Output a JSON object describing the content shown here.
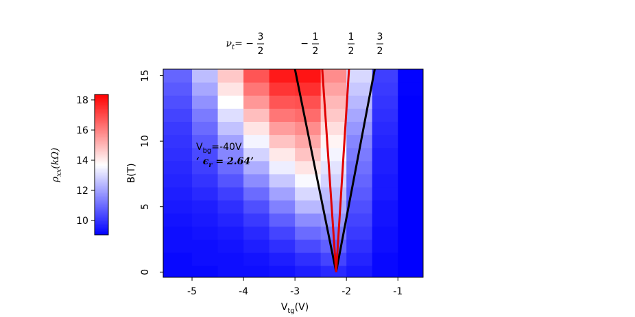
{
  "chart_data": {
    "type": "heatmap",
    "x_label": {
      "main": "V",
      "sub": "tg",
      "unit": "(V)"
    },
    "y_label": "B(T)",
    "colorbar_label": {
      "main": "ρ",
      "sub": "xx",
      "unit": "(kΩ)"
    },
    "x": [
      -5.25,
      -4.75,
      -4.25,
      -3.75,
      -3.25,
      -2.75,
      -2.25,
      -1.75,
      -1.25,
      -0.75
    ],
    "y": [
      0,
      1,
      2,
      3,
      4,
      5,
      6,
      7,
      8,
      9,
      10,
      11,
      12,
      13,
      14,
      15
    ],
    "z": [
      [
        9.2,
        9.2,
        9.3,
        9.3,
        9.4,
        9.6,
        9.8,
        9.5,
        9.2,
        9.0
      ],
      [
        9.2,
        9.3,
        9.3,
        9.4,
        9.6,
        9.9,
        10.3,
        9.7,
        9.2,
        9.0
      ],
      [
        9.3,
        9.3,
        9.4,
        9.6,
        9.9,
        10.4,
        10.8,
        9.9,
        9.3,
        9.0
      ],
      [
        9.3,
        9.4,
        9.5,
        9.8,
        10.3,
        11.0,
        11.3,
        10.1,
        9.3,
        9.0
      ],
      [
        9.4,
        9.5,
        9.7,
        10.1,
        10.8,
        11.6,
        11.8,
        10.3,
        9.4,
        9.0
      ],
      [
        9.5,
        9.6,
        9.9,
        10.5,
        11.4,
        12.4,
        12.2,
        10.5,
        9.4,
        9.0
      ],
      [
        9.6,
        9.8,
        10.2,
        11.0,
        12.0,
        13.0,
        12.5,
        10.7,
        9.5,
        9.0
      ],
      [
        9.7,
        10.0,
        10.6,
        11.6,
        12.7,
        13.6,
        12.9,
        10.9,
        9.5,
        9.0
      ],
      [
        9.8,
        10.2,
        11.0,
        12.2,
        13.4,
        14.2,
        13.2,
        11.1,
        9.6,
        9.0
      ],
      [
        9.9,
        10.4,
        11.5,
        12.9,
        14.1,
        14.8,
        13.5,
        11.3,
        9.6,
        9.0
      ],
      [
        10.0,
        10.7,
        12.0,
        13.5,
        14.8,
        15.3,
        13.9,
        11.5,
        9.7,
        9.0
      ],
      [
        10.1,
        11.0,
        12.6,
        14.2,
        15.5,
        15.8,
        14.3,
        11.8,
        9.8,
        9.0
      ],
      [
        10.3,
        11.3,
        13.1,
        14.9,
        16.2,
        16.4,
        14.7,
        12.1,
        9.9,
        9.0
      ],
      [
        10.5,
        11.7,
        13.7,
        15.6,
        16.8,
        16.9,
        15.0,
        12.4,
        10.0,
        9.0
      ],
      [
        10.7,
        12.1,
        14.2,
        16.2,
        17.4,
        17.5,
        15.4,
        12.7,
        10.1,
        9.1
      ],
      [
        10.9,
        12.5,
        14.7,
        16.8,
        17.9,
        18.0,
        15.8,
        13.0,
        10.2,
        9.1
      ]
    ],
    "xlim": [
      -5.56,
      -0.51
    ],
    "ylim": [
      -0.4,
      15.5
    ],
    "xticks": [
      -5,
      -4,
      -3,
      -2,
      -1
    ],
    "yticks": [
      0,
      5,
      10,
      15
    ],
    "zlim": [
      9.05,
      18.36
    ],
    "zticks": [
      10,
      12,
      14,
      16,
      18
    ],
    "colormap": [
      "#0000ff",
      "#ffffff",
      "#ff0000"
    ],
    "lines": [
      {
        "color": "#000000",
        "x": [
          -2.2,
          -3.0
        ],
        "y": [
          0,
          15.5
        ]
      },
      {
        "color": "#000000",
        "x": [
          -2.2,
          -1.45
        ],
        "y": [
          0,
          15.5
        ]
      },
      {
        "color": "#e00000",
        "x": [
          -2.2,
          -2.47
        ],
        "y": [
          0,
          15.5
        ]
      },
      {
        "color": "#e00000",
        "x": [
          -2.2,
          -1.95
        ],
        "y": [
          0,
          15.5
        ]
      }
    ],
    "fill_labels": [
      {
        "symbol": "ν",
        "sub": "t",
        "eq": "= −",
        "num": "3",
        "den": "2"
      },
      {
        "sign": "−",
        "num": "1",
        "den": "2"
      },
      {
        "num": "1",
        "den": "2"
      },
      {
        "num": "3",
        "den": "2"
      }
    ],
    "annotations": [
      {
        "main": "V",
        "sub": "bg",
        "rest": "=-40V"
      },
      {
        "text": "‘ ϵ",
        "sub": "r",
        "rest": " = 2.64’"
      }
    ]
  }
}
